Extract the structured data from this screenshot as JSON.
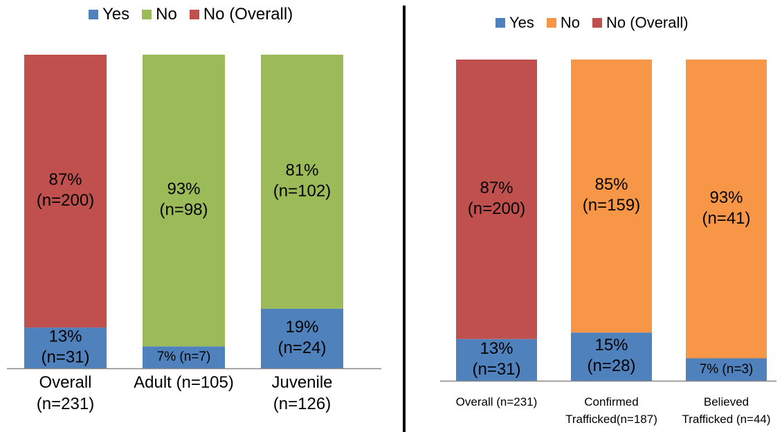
{
  "chart_data": [
    {
      "type": "bar",
      "stacked": true,
      "categories": [
        [
          "Overall",
          "(n=231)"
        ],
        [
          "Adult (n=105)"
        ],
        [
          "Juvenile",
          "(n=126)"
        ]
      ],
      "series": [
        {
          "name": "Yes",
          "color": "#4F81BD",
          "values": [
            13,
            7,
            19
          ],
          "labels": [
            [
              "13%",
              "(n=31)"
            ],
            [
              "7% (n=7)"
            ],
            [
              "19%",
              "(n=24)"
            ]
          ]
        },
        {
          "name": "No",
          "color": "#9BBB59",
          "values": [
            0,
            93,
            81
          ],
          "labels": [
            [],
            [
              "93%",
              "(n=98)"
            ],
            [
              "81%",
              "(n=102)"
            ]
          ]
        },
        {
          "name": "No (Overall)",
          "color": "#C0504D",
          "values": [
            87,
            0,
            0
          ],
          "labels": [
            [
              "87%",
              "(n=200)"
            ],
            [],
            []
          ]
        }
      ],
      "ylim": [
        0,
        100
      ],
      "grid": false,
      "legend": "top"
    },
    {
      "type": "bar",
      "stacked": true,
      "categories": [
        [
          "Overall (n=231)"
        ],
        [
          "Confirmed",
          "Trafficked(n=187)"
        ],
        [
          "Believed",
          "Trafficked (n=44)"
        ]
      ],
      "series": [
        {
          "name": "Yes",
          "color": "#4F81BD",
          "values": [
            13,
            15,
            7
          ],
          "labels": [
            [
              "13%",
              "(n=31)"
            ],
            [
              "15%",
              "(n=28)"
            ],
            [
              "7% (n=3)"
            ]
          ]
        },
        {
          "name": "No",
          "color": "#F79646",
          "values": [
            0,
            85,
            93
          ],
          "labels": [
            [],
            [
              "85%",
              "(n=159)"
            ],
            [
              "93%",
              "(n=41)"
            ]
          ]
        },
        {
          "name": "No (Overall)",
          "color": "#C0504D",
          "values": [
            87,
            0,
            0
          ],
          "labels": [
            [
              "87%",
              "(n=200)"
            ],
            [],
            []
          ]
        }
      ],
      "ylim": [
        0,
        100
      ],
      "grid": false,
      "legend": "top"
    }
  ]
}
